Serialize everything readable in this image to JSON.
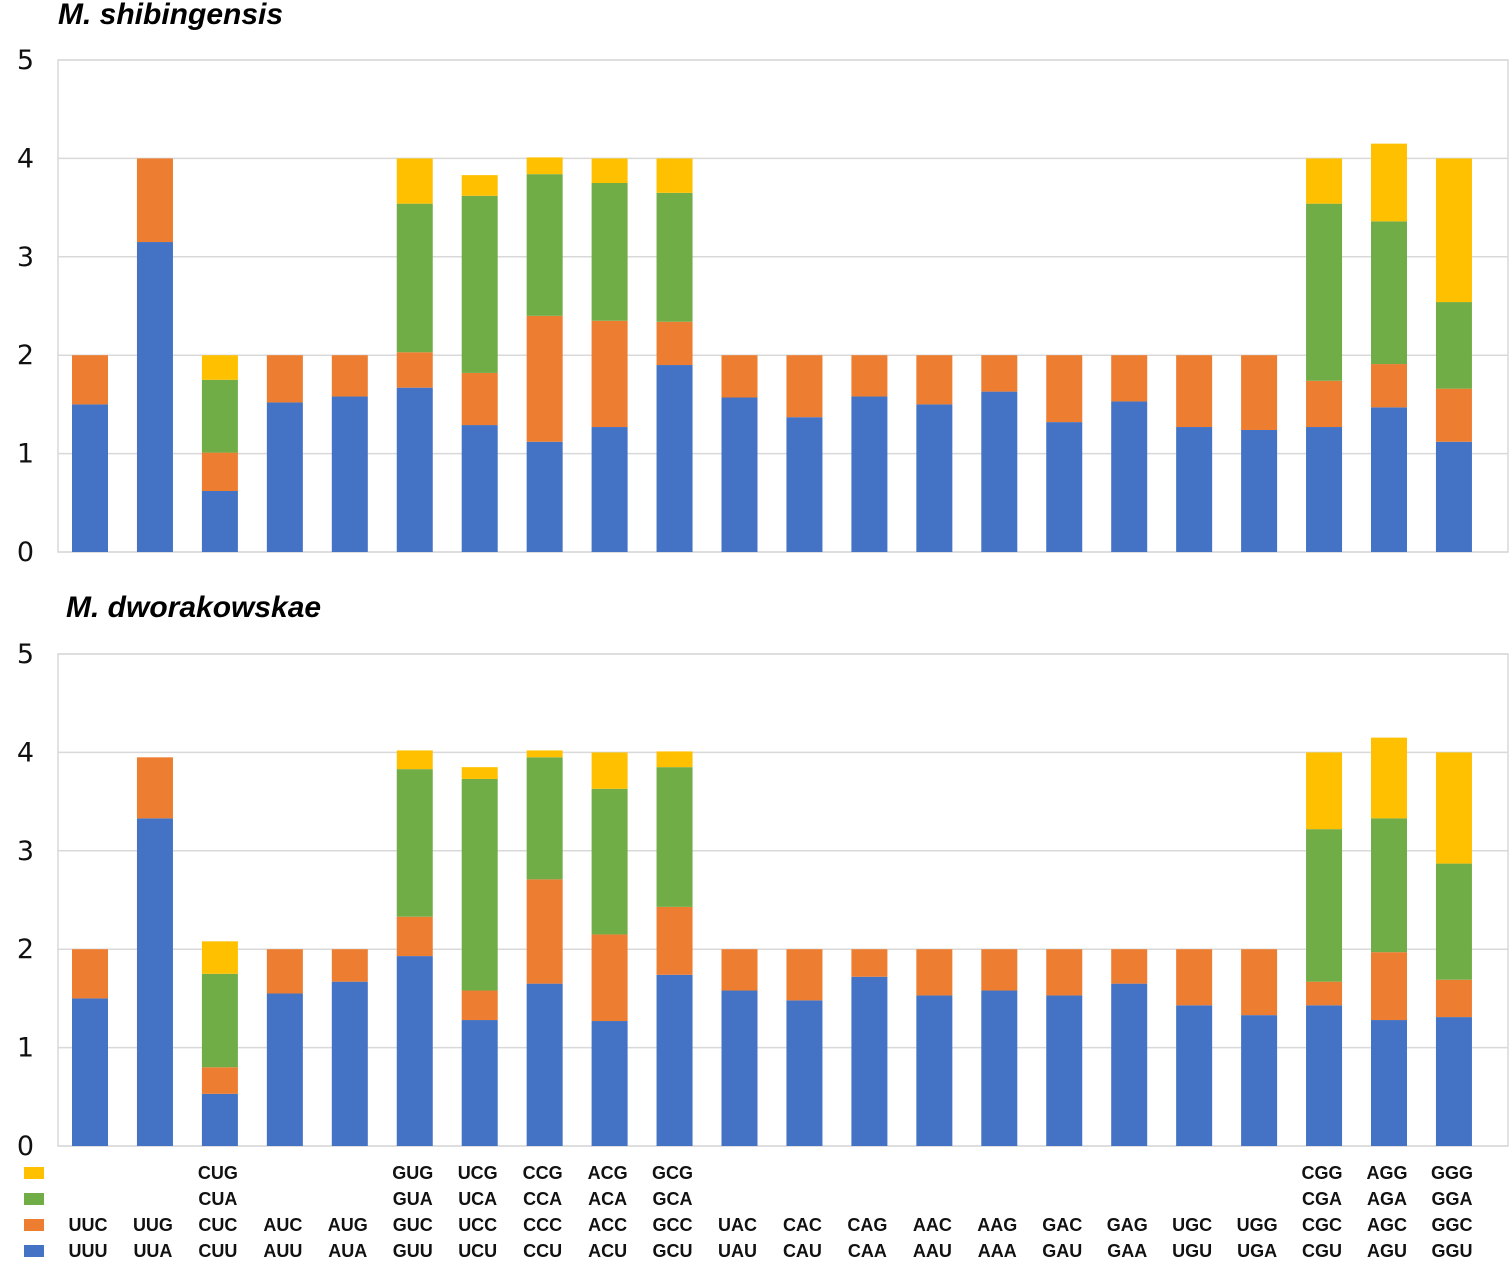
{
  "chart_data": [
    {
      "type": "bar",
      "stacked": true,
      "title": "M. shibingensis",
      "ylim": [
        0,
        5
      ],
      "yticks": [
        "0",
        "1",
        "2",
        "3",
        "4",
        "5"
      ],
      "grid": true,
      "series": [
        {
          "color": "#4472C4",
          "values": [
            1.5,
            3.15,
            0.62,
            1.52,
            1.58,
            1.67,
            1.29,
            1.12,
            1.27,
            1.9,
            1.57,
            1.37,
            1.58,
            1.5,
            1.63,
            1.32,
            1.53,
            1.27,
            1.24,
            1.27,
            1.47,
            1.12
          ]
        },
        {
          "color": "#ED7D31",
          "values": [
            0.5,
            0.85,
            0.39,
            0.48,
            0.42,
            0.36,
            0.53,
            1.28,
            1.08,
            0.44,
            0.43,
            0.63,
            0.42,
            0.5,
            0.37,
            0.68,
            0.47,
            0.73,
            0.76,
            0.47,
            0.44,
            0.54
          ]
        },
        {
          "color": "#70AD47",
          "values": [
            0,
            0,
            0.74,
            0,
            0,
            1.51,
            1.8,
            1.44,
            1.4,
            1.31,
            0,
            0,
            0,
            0,
            0,
            0,
            0,
            0,
            0,
            1.8,
            1.45,
            0.88
          ]
        },
        {
          "color": "#FFC000",
          "values": [
            0,
            0,
            0.25,
            0,
            0,
            0.46,
            0.21,
            0.17,
            0.25,
            0.35,
            0,
            0,
            0,
            0,
            0,
            0,
            0,
            0,
            0,
            0.46,
            0.79,
            1.46
          ]
        }
      ]
    },
    {
      "type": "bar",
      "stacked": true,
      "title": "M. dworakowskae",
      "ylim": [
        0,
        5
      ],
      "yticks": [
        "0",
        "1",
        "2",
        "3",
        "4",
        "5"
      ],
      "grid": true,
      "series": [
        {
          "color": "#4472C4",
          "values": [
            1.5,
            3.33,
            0.53,
            1.55,
            1.67,
            1.93,
            1.28,
            1.65,
            1.27,
            1.74,
            1.58,
            1.48,
            1.72,
            1.53,
            1.58,
            1.53,
            1.65,
            1.43,
            1.33,
            1.43,
            1.28,
            1.31
          ]
        },
        {
          "color": "#ED7D31",
          "values": [
            0.5,
            0.62,
            0.27,
            0.45,
            0.33,
            0.4,
            0.3,
            1.06,
            0.88,
            0.69,
            0.42,
            0.52,
            0.28,
            0.47,
            0.42,
            0.47,
            0.35,
            0.57,
            0.67,
            0.24,
            0.69,
            0.38
          ]
        },
        {
          "color": "#70AD47",
          "values": [
            0,
            0,
            0.95,
            0,
            0,
            1.5,
            2.15,
            1.24,
            1.48,
            1.42,
            0,
            0,
            0,
            0,
            0,
            0,
            0,
            0,
            0,
            1.55,
            1.36,
            1.18
          ]
        },
        {
          "color": "#FFC000",
          "values": [
            0,
            0,
            0.33,
            0,
            0,
            0.19,
            0.12,
            0.07,
            0.37,
            0.16,
            0,
            0,
            0,
            0,
            0,
            0,
            0,
            0,
            0,
            0.78,
            0.82,
            1.13
          ]
        }
      ]
    }
  ],
  "legend": {
    "placement": "bottom-left",
    "colors": [
      "#FFC000",
      "#70AD47",
      "#ED7D31",
      "#4472C4"
    ]
  },
  "codon_labels": [
    [
      "UUC",
      "UUU"
    ],
    [
      "UUG",
      "UUA"
    ],
    [
      "CUG",
      "CUA",
      "CUC",
      "CUU"
    ],
    [
      "AUC",
      "AUU"
    ],
    [
      "AUG",
      "AUA"
    ],
    [
      "GUG",
      "GUA",
      "GUC",
      "GUU"
    ],
    [
      "UCG",
      "UCA",
      "UCC",
      "UCU"
    ],
    [
      "CCG",
      "CCA",
      "CCC",
      "CCU"
    ],
    [
      "ACG",
      "ACA",
      "ACC",
      "ACU"
    ],
    [
      "GCG",
      "GCA",
      "GCC",
      "GCU"
    ],
    [
      "UAC",
      "UAU"
    ],
    [
      "CAC",
      "CAU"
    ],
    [
      "CAG",
      "CAA"
    ],
    [
      "AAC",
      "AAU"
    ],
    [
      "AAG",
      "AAA"
    ],
    [
      "GAC",
      "GAU"
    ],
    [
      "GAG",
      "GAA"
    ],
    [
      "UGC",
      "UGU"
    ],
    [
      "UGG",
      "UGA"
    ],
    [
      "CGG",
      "CGA",
      "CGC",
      "CGU"
    ],
    [
      "AGG",
      "AGA",
      "AGC",
      "AGU"
    ],
    [
      "GGG",
      "GGA",
      "GGC",
      "GGU"
    ]
  ]
}
